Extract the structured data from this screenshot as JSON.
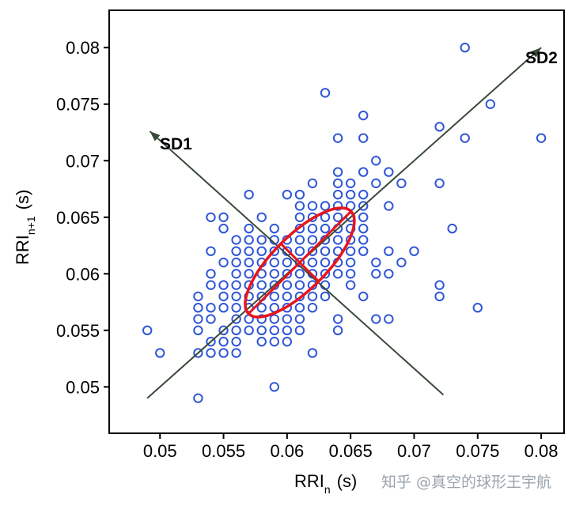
{
  "chart_data": {
    "type": "scatter",
    "title": "",
    "xlabel": "RRI",
    "xlabel_sub": "n",
    "xlabel_unit": "(s)",
    "ylabel": "RRI",
    "ylabel_sub": "n+1",
    "ylabel_unit": "(s)",
    "xlim": [
      0.046,
      0.0818
    ],
    "ylim": [
      0.0459,
      0.0833
    ],
    "xticks": [
      "0.05",
      "0.055",
      "0.06",
      "0.065",
      "0.07",
      "0.075",
      "0.08"
    ],
    "yticks": [
      "0.05",
      "0.055",
      "0.06",
      "0.065",
      "0.07",
      "0.075",
      "0.08"
    ],
    "grid": false,
    "marker_color": "#2f56d6",
    "ellipse_color": "#e8141c",
    "points": [
      [
        0.074,
        0.08
      ],
      [
        0.063,
        0.076
      ],
      [
        0.076,
        0.075
      ],
      [
        0.066,
        0.074
      ],
      [
        0.072,
        0.073
      ],
      [
        0.064,
        0.072
      ],
      [
        0.066,
        0.072
      ],
      [
        0.074,
        0.072
      ],
      [
        0.08,
        0.072
      ],
      [
        0.067,
        0.07
      ],
      [
        0.064,
        0.069
      ],
      [
        0.066,
        0.069
      ],
      [
        0.068,
        0.069
      ],
      [
        0.062,
        0.068
      ],
      [
        0.064,
        0.068
      ],
      [
        0.065,
        0.068
      ],
      [
        0.067,
        0.068
      ],
      [
        0.069,
        0.068
      ],
      [
        0.072,
        0.068
      ],
      [
        0.057,
        0.067
      ],
      [
        0.06,
        0.067
      ],
      [
        0.061,
        0.067
      ],
      [
        0.064,
        0.067
      ],
      [
        0.065,
        0.067
      ],
      [
        0.066,
        0.067
      ],
      [
        0.061,
        0.066
      ],
      [
        0.062,
        0.066
      ],
      [
        0.063,
        0.066
      ],
      [
        0.064,
        0.066
      ],
      [
        0.065,
        0.066
      ],
      [
        0.066,
        0.066
      ],
      [
        0.068,
        0.066
      ],
      [
        0.054,
        0.065
      ],
      [
        0.055,
        0.065
      ],
      [
        0.058,
        0.065
      ],
      [
        0.061,
        0.065
      ],
      [
        0.062,
        0.065
      ],
      [
        0.063,
        0.065
      ],
      [
        0.064,
        0.065
      ],
      [
        0.065,
        0.065
      ],
      [
        0.066,
        0.065
      ],
      [
        0.055,
        0.064
      ],
      [
        0.057,
        0.064
      ],
      [
        0.059,
        0.064
      ],
      [
        0.061,
        0.064
      ],
      [
        0.062,
        0.064
      ],
      [
        0.063,
        0.064
      ],
      [
        0.064,
        0.064
      ],
      [
        0.065,
        0.064
      ],
      [
        0.066,
        0.064
      ],
      [
        0.073,
        0.064
      ],
      [
        0.056,
        0.063
      ],
      [
        0.057,
        0.063
      ],
      [
        0.058,
        0.063
      ],
      [
        0.059,
        0.063
      ],
      [
        0.06,
        0.063
      ],
      [
        0.061,
        0.063
      ],
      [
        0.062,
        0.063
      ],
      [
        0.063,
        0.063
      ],
      [
        0.064,
        0.063
      ],
      [
        0.065,
        0.063
      ],
      [
        0.066,
        0.063
      ],
      [
        0.054,
        0.062
      ],
      [
        0.056,
        0.062
      ],
      [
        0.057,
        0.062
      ],
      [
        0.058,
        0.062
      ],
      [
        0.059,
        0.062
      ],
      [
        0.06,
        0.062
      ],
      [
        0.061,
        0.062
      ],
      [
        0.062,
        0.062
      ],
      [
        0.063,
        0.062
      ],
      [
        0.064,
        0.062
      ],
      [
        0.065,
        0.062
      ],
      [
        0.066,
        0.062
      ],
      [
        0.068,
        0.062
      ],
      [
        0.07,
        0.062
      ],
      [
        0.055,
        0.061
      ],
      [
        0.056,
        0.061
      ],
      [
        0.057,
        0.061
      ],
      [
        0.058,
        0.061
      ],
      [
        0.059,
        0.061
      ],
      [
        0.06,
        0.061
      ],
      [
        0.061,
        0.061
      ],
      [
        0.062,
        0.061
      ],
      [
        0.063,
        0.061
      ],
      [
        0.064,
        0.061
      ],
      [
        0.065,
        0.061
      ],
      [
        0.067,
        0.061
      ],
      [
        0.069,
        0.061
      ],
      [
        0.054,
        0.06
      ],
      [
        0.056,
        0.06
      ],
      [
        0.057,
        0.06
      ],
      [
        0.058,
        0.06
      ],
      [
        0.059,
        0.06
      ],
      [
        0.06,
        0.06
      ],
      [
        0.061,
        0.06
      ],
      [
        0.062,
        0.06
      ],
      [
        0.063,
        0.06
      ],
      [
        0.064,
        0.06
      ],
      [
        0.065,
        0.06
      ],
      [
        0.067,
        0.06
      ],
      [
        0.068,
        0.06
      ],
      [
        0.054,
        0.059
      ],
      [
        0.055,
        0.059
      ],
      [
        0.056,
        0.059
      ],
      [
        0.057,
        0.059
      ],
      [
        0.058,
        0.059
      ],
      [
        0.059,
        0.059
      ],
      [
        0.06,
        0.059
      ],
      [
        0.061,
        0.059
      ],
      [
        0.062,
        0.059
      ],
      [
        0.063,
        0.059
      ],
      [
        0.065,
        0.059
      ],
      [
        0.072,
        0.059
      ],
      [
        0.053,
        0.058
      ],
      [
        0.055,
        0.058
      ],
      [
        0.056,
        0.058
      ],
      [
        0.057,
        0.058
      ],
      [
        0.058,
        0.058
      ],
      [
        0.059,
        0.058
      ],
      [
        0.06,
        0.058
      ],
      [
        0.061,
        0.058
      ],
      [
        0.062,
        0.058
      ],
      [
        0.063,
        0.058
      ],
      [
        0.066,
        0.058
      ],
      [
        0.072,
        0.058
      ],
      [
        0.053,
        0.057
      ],
      [
        0.054,
        0.057
      ],
      [
        0.055,
        0.057
      ],
      [
        0.056,
        0.057
      ],
      [
        0.057,
        0.057
      ],
      [
        0.058,
        0.057
      ],
      [
        0.059,
        0.057
      ],
      [
        0.06,
        0.057
      ],
      [
        0.061,
        0.057
      ],
      [
        0.062,
        0.057
      ],
      [
        0.075,
        0.057
      ],
      [
        0.053,
        0.056
      ],
      [
        0.054,
        0.056
      ],
      [
        0.056,
        0.056
      ],
      [
        0.057,
        0.056
      ],
      [
        0.058,
        0.056
      ],
      [
        0.059,
        0.056
      ],
      [
        0.06,
        0.056
      ],
      [
        0.061,
        0.056
      ],
      [
        0.064,
        0.056
      ],
      [
        0.067,
        0.056
      ],
      [
        0.068,
        0.056
      ],
      [
        0.049,
        0.055
      ],
      [
        0.053,
        0.055
      ],
      [
        0.055,
        0.055
      ],
      [
        0.056,
        0.055
      ],
      [
        0.057,
        0.055
      ],
      [
        0.058,
        0.055
      ],
      [
        0.059,
        0.055
      ],
      [
        0.06,
        0.055
      ],
      [
        0.061,
        0.055
      ],
      [
        0.064,
        0.055
      ],
      [
        0.054,
        0.054
      ],
      [
        0.055,
        0.054
      ],
      [
        0.056,
        0.054
      ],
      [
        0.058,
        0.054
      ],
      [
        0.059,
        0.054
      ],
      [
        0.06,
        0.054
      ],
      [
        0.055,
        0.054
      ],
      [
        0.054,
        0.054
      ],
      [
        0.055,
        0.054
      ],
      [
        0.058,
        0.054
      ],
      [
        0.059,
        0.054
      ],
      [
        0.06,
        0.054
      ],
      [
        0.055,
        0.054
      ],
      [
        0.056,
        0.054
      ],
      [
        0.05,
        0.053
      ],
      [
        0.053,
        0.053
      ],
      [
        0.054,
        0.053
      ],
      [
        0.055,
        0.053
      ],
      [
        0.056,
        0.053
      ],
      [
        0.062,
        0.053
      ],
      [
        0.059,
        0.05
      ],
      [
        0.053,
        0.049
      ]
    ],
    "annotations": {
      "sd1_label": "SD1",
      "sd2_label": "SD2",
      "sd2_axis": {
        "from": [
          0.049,
          0.049
        ],
        "to": [
          0.08,
          0.08
        ]
      },
      "sd1_axis": {
        "from": [
          0.0723,
          0.0493
        ],
        "to": [
          0.0492,
          0.0726
        ]
      },
      "ellipse": {
        "center": [
          0.061,
          0.061
        ],
        "sd1": 0.0021,
        "sd2": 0.0057,
        "angle_deg": 45
      }
    }
  },
  "watermark": "知乎 @真空的球形王宇航"
}
